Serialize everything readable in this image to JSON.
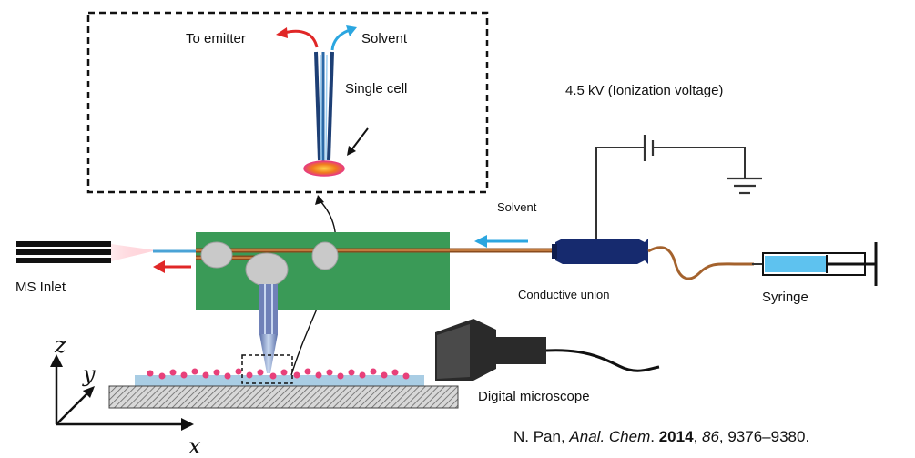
{
  "inset": {
    "to_emitter": "To emitter",
    "solvent": "Solvent",
    "single_cell": "Single cell"
  },
  "labels": {
    "ionization_voltage": "4.5 kV (Ionization voltage)",
    "solvent": "Solvent",
    "ms_inlet": "MS Inlet",
    "conductive_union": "Conductive union",
    "syringe": "Syringe",
    "digital_microscope": "Digital microscope"
  },
  "axes": {
    "z": "z",
    "y": "y",
    "x": "x"
  },
  "citation": {
    "author": "N. Pan, ",
    "journal": "Anal. Chem",
    "sep1": ". ",
    "year": "2014",
    "sep2": ", ",
    "volume": "86",
    "pages": ", 9376–9380."
  },
  "colors": {
    "chip_green": "#3a9a57",
    "capillary_brown": "#a4622d",
    "flow_blue": "#2ba6e0",
    "flow_red": "#e02727",
    "union_navy": "#162a6e",
    "cell_pink": "#e8407a",
    "cell_orange": "#f07a1e"
  }
}
